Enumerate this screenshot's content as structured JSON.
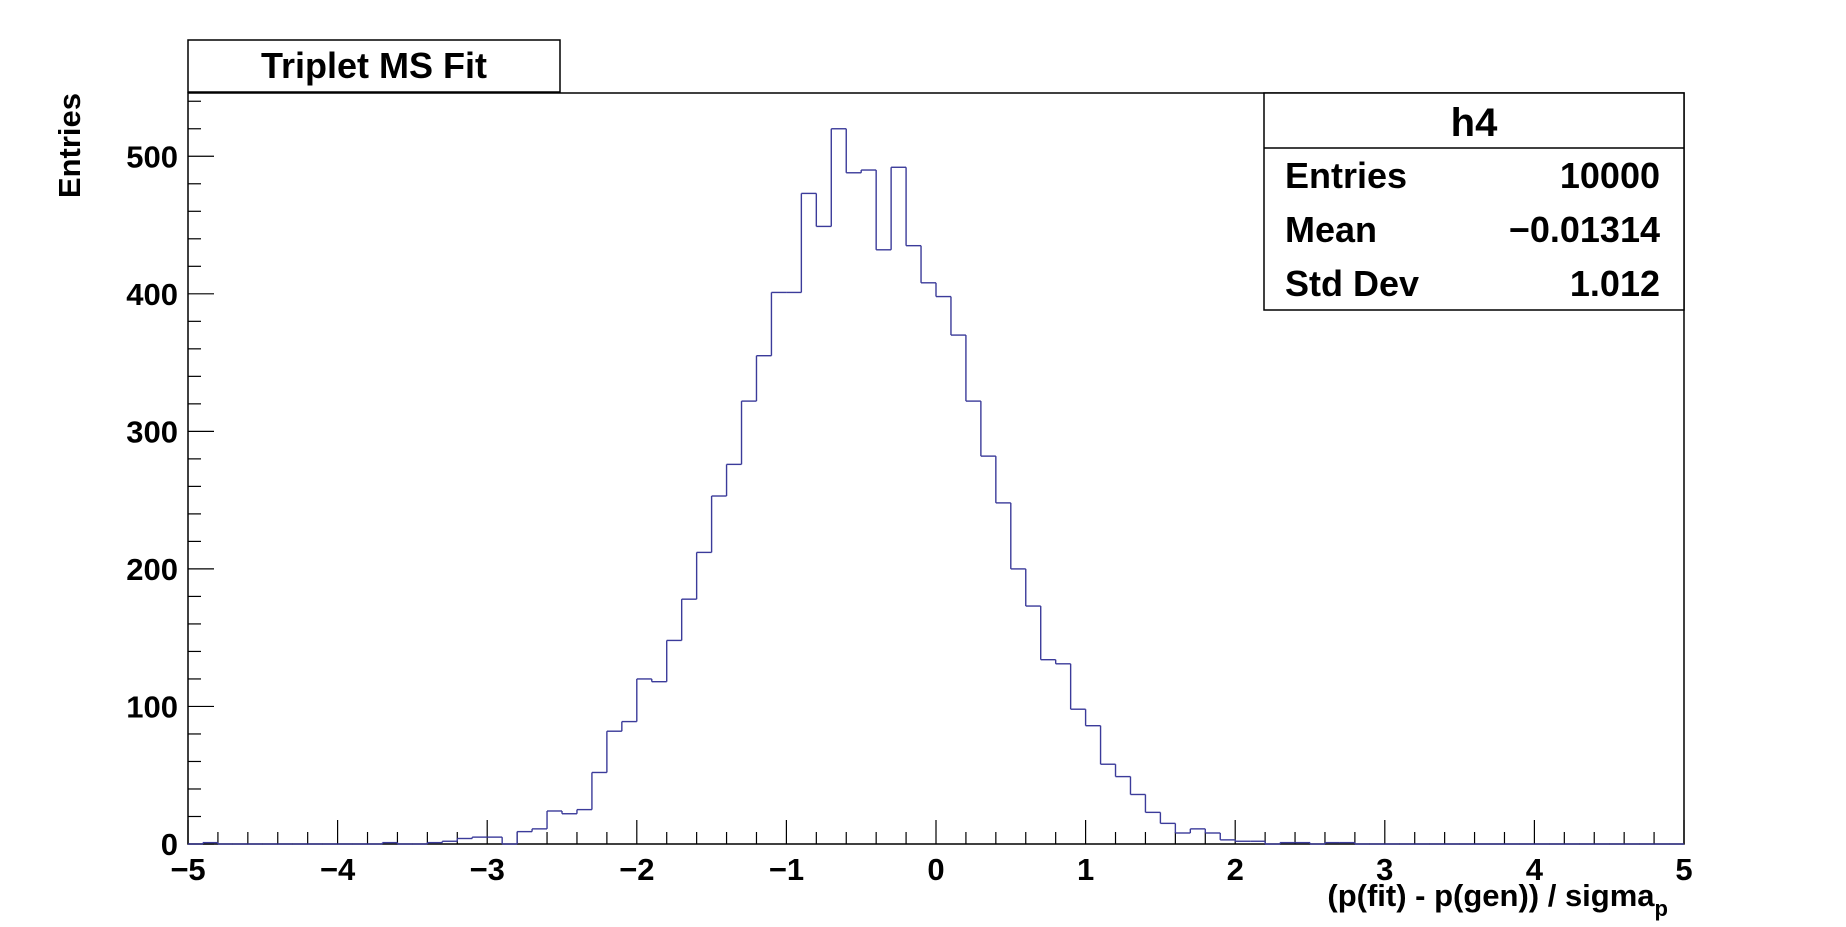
{
  "title": "Triplet MS Fit",
  "stats": {
    "name": "h4",
    "rows": [
      {
        "label": "Entries",
        "value": "10000"
      },
      {
        "label": "Mean",
        "value": "−0.01314"
      },
      {
        "label": "Std Dev",
        "value": "1.012"
      }
    ]
  },
  "chart_data": {
    "type": "bar",
    "histogram": true,
    "title": "Triplet MS Fit",
    "xlabel": "(p(fit) - p(gen)) / sigma",
    "xlabel_subscript": "p",
    "ylabel": "Entries",
    "xlim": [
      -5,
      5
    ],
    "ylim": [
      0,
      546
    ],
    "x_ticks": [
      "−5",
      "−4",
      "−3",
      "−2",
      "−1",
      "0",
      "1",
      "2",
      "3",
      "4",
      "5"
    ],
    "y_ticks": [
      "0",
      "100",
      "200",
      "300",
      "400",
      "500"
    ],
    "line_color": "#3b3b9a",
    "bin_edges_start": -5.0,
    "bin_width": 0.1,
    "values": [
      0,
      1,
      0,
      0,
      0,
      0,
      0,
      0,
      0,
      0,
      0,
      0,
      0,
      1,
      0,
      0,
      1,
      2,
      4,
      5,
      5,
      0,
      9,
      11,
      24,
      22,
      25,
      52,
      82,
      89,
      120,
      118,
      148,
      178,
      212,
      253,
      276,
      322,
      355,
      401,
      401,
      473,
      449,
      520,
      488,
      490,
      432,
      492,
      435,
      408,
      398,
      370,
      322,
      282,
      248,
      200,
      173,
      134,
      131,
      98,
      86,
      58,
      49,
      36,
      23,
      15,
      8,
      11,
      8,
      3,
      2,
      2,
      0,
      1,
      1,
      0,
      1,
      1,
      0,
      0,
      0,
      0,
      0,
      0,
      0,
      0,
      0,
      0,
      0,
      0,
      0,
      0,
      0,
      0,
      0,
      0,
      0,
      0,
      0,
      0
    ]
  }
}
